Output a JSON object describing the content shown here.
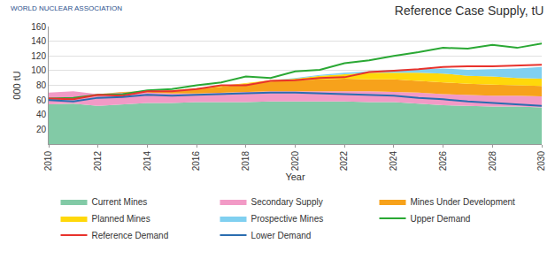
{
  "chart_data": {
    "type": "area",
    "title": "Reference Case Supply, tU",
    "annotations": [
      "WORLD NUCLEAR ASSOCIATION"
    ],
    "x_label": "Year",
    "y_label": "000 tU",
    "x": [
      2010,
      2011,
      2012,
      2013,
      2014,
      2015,
      2016,
      2017,
      2018,
      2019,
      2020,
      2021,
      2022,
      2023,
      2024,
      2025,
      2026,
      2027,
      2028,
      2029,
      2030
    ],
    "xlim": [
      2010,
      2030
    ],
    "xticks": [
      2010,
      2012,
      2014,
      2016,
      2018,
      2020,
      2022,
      2024,
      2026,
      2028,
      2030
    ],
    "ylim": [
      0,
      160
    ],
    "yticks": [
      20,
      40,
      60,
      80,
      100,
      120,
      140,
      160
    ],
    "grid": true,
    "stacked": true,
    "legend": "bottom",
    "series": [
      {
        "name": "Current Mines",
        "type": "area",
        "color": "#82caa6",
        "values": [
          54,
          55,
          52,
          54,
          56,
          56,
          57,
          57,
          57,
          58,
          58,
          58,
          58,
          57,
          57,
          55,
          53,
          52,
          51,
          51,
          50
        ]
      },
      {
        "name": "Secondary Supply",
        "type": "area",
        "color": "#f29ac6",
        "values": [
          16,
          17,
          16,
          16,
          14,
          13,
          12,
          13,
          14,
          14,
          14,
          14,
          14,
          15,
          14,
          15,
          15,
          15,
          15,
          15,
          15
        ]
      },
      {
        "name": "Mines Under Development",
        "type": "area",
        "color": "#f7a21b",
        "values": [
          0,
          0,
          0,
          1,
          2,
          4,
          6,
          8,
          11,
          13,
          15,
          16,
          17,
          16,
          17,
          16,
          16,
          15,
          15,
          14,
          14
        ]
      },
      {
        "name": "Planned Mines",
        "type": "area",
        "color": "#ffd80a",
        "values": [
          0,
          0,
          0,
          0,
          0,
          0,
          1,
          1,
          1,
          2,
          2,
          5,
          6,
          9,
          9,
          11,
          12,
          11,
          11,
          10,
          10
        ]
      },
      {
        "name": "Prospective Mines",
        "type": "area",
        "color": "#80d0f0",
        "values": [
          0,
          0,
          0,
          0,
          0,
          0,
          0,
          0,
          0,
          0,
          1,
          1,
          2,
          2,
          4,
          5,
          7,
          8,
          10,
          13,
          16
        ]
      },
      {
        "name": "Upper Demand",
        "type": "line",
        "color": "#2aa834",
        "values": [
          62,
          63,
          67,
          68,
          73,
          75,
          80,
          84,
          92,
          90,
          99,
          101,
          110,
          114,
          120,
          125,
          131,
          130,
          135,
          131,
          137
        ]
      },
      {
        "name": "Reference Demand",
        "type": "line",
        "color": "#e8322c",
        "values": [
          62,
          61,
          67,
          66,
          72,
          72,
          75,
          80,
          80,
          86,
          87,
          90,
          91,
          98,
          100,
          102,
          105,
          106,
          106,
          107,
          108
        ]
      },
      {
        "name": "Lower Demand",
        "type": "line",
        "color": "#2a6db0",
        "values": [
          60,
          58,
          63,
          64,
          67,
          66,
          67,
          68,
          69,
          70,
          70,
          69,
          68,
          67,
          66,
          63,
          61,
          58,
          56,
          54,
          52
        ]
      }
    ]
  }
}
